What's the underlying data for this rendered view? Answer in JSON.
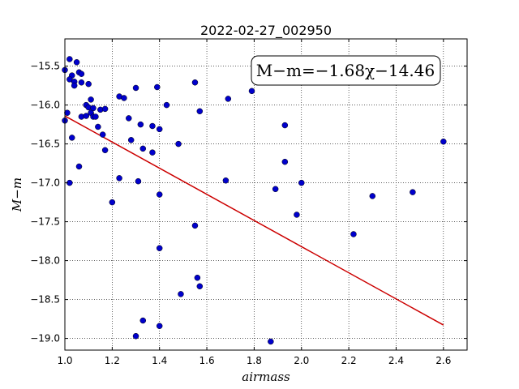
{
  "chart_data": {
    "type": "scatter",
    "title": "2022-02-27_002950",
    "xlabel": "airmass",
    "ylabel": "M−m",
    "xlim": [
      1.0,
      2.7
    ],
    "ylim": [
      -19.15,
      -15.15
    ],
    "xticks": [
      1.0,
      1.2,
      1.4,
      1.6,
      1.8,
      2.0,
      2.2,
      2.4,
      2.6
    ],
    "xtick_labels": [
      "1.0",
      "1.2",
      "1.4",
      "1.6",
      "1.8",
      "2.0",
      "2.2",
      "2.4",
      "2.6"
    ],
    "yticks": [
      -15.5,
      -16.0,
      -16.5,
      -17.0,
      -17.5,
      -18.0,
      -18.5,
      -19.0
    ],
    "ytick_labels": [
      "−15.5",
      "−16.0",
      "−16.5",
      "−17.0",
      "−17.5",
      "−18.0",
      "−18.5",
      "−19.0"
    ],
    "grid": true,
    "annotation": "M−m=−1.68χ−14.46",
    "annotation_position": "top-right",
    "fit": {
      "slope": -1.68,
      "intercept": -14.46,
      "x_range": [
        1.0,
        2.6
      ],
      "color": "#cc0000"
    },
    "point_color": "#0000cc",
    "points": [
      {
        "x": 1.0,
        "y": -15.55
      },
      {
        "x": 1.01,
        "y": -16.1
      },
      {
        "x": 1.0,
        "y": -16.2
      },
      {
        "x": 1.02,
        "y": -15.41
      },
      {
        "x": 1.03,
        "y": -15.62
      },
      {
        "x": 1.02,
        "y": -15.67
      },
      {
        "x": 1.04,
        "y": -15.7
      },
      {
        "x": 1.04,
        "y": -15.75
      },
      {
        "x": 1.05,
        "y": -15.45
      },
      {
        "x": 1.06,
        "y": -15.58
      },
      {
        "x": 1.07,
        "y": -15.6
      },
      {
        "x": 1.07,
        "y": -15.71
      },
      {
        "x": 1.1,
        "y": -15.73
      },
      {
        "x": 1.03,
        "y": -16.42
      },
      {
        "x": 1.02,
        "y": -17.0
      },
      {
        "x": 1.06,
        "y": -16.79
      },
      {
        "x": 1.07,
        "y": -16.15
      },
      {
        "x": 1.09,
        "y": -16.14
      },
      {
        "x": 1.09,
        "y": -16.0
      },
      {
        "x": 1.1,
        "y": -16.03
      },
      {
        "x": 1.11,
        "y": -15.93
      },
      {
        "x": 1.11,
        "y": -16.1
      },
      {
        "x": 1.12,
        "y": -16.04
      },
      {
        "x": 1.12,
        "y": -16.15
      },
      {
        "x": 1.13,
        "y": -16.15
      },
      {
        "x": 1.14,
        "y": -16.28
      },
      {
        "x": 1.15,
        "y": -16.06
      },
      {
        "x": 1.16,
        "y": -16.38
      },
      {
        "x": 1.17,
        "y": -16.05
      },
      {
        "x": 1.17,
        "y": -16.58
      },
      {
        "x": 1.2,
        "y": -17.25
      },
      {
        "x": 1.23,
        "y": -15.89
      },
      {
        "x": 1.25,
        "y": -15.91
      },
      {
        "x": 1.27,
        "y": -16.17
      },
      {
        "x": 1.28,
        "y": -16.45
      },
      {
        "x": 1.23,
        "y": -16.94
      },
      {
        "x": 1.3,
        "y": -15.78
      },
      {
        "x": 1.32,
        "y": -16.25
      },
      {
        "x": 1.33,
        "y": -16.56
      },
      {
        "x": 1.31,
        "y": -16.98
      },
      {
        "x": 1.37,
        "y": -16.27
      },
      {
        "x": 1.37,
        "y": -16.61
      },
      {
        "x": 1.39,
        "y": -15.77
      },
      {
        "x": 1.4,
        "y": -16.31
      },
      {
        "x": 1.43,
        "y": -16.0
      },
      {
        "x": 1.4,
        "y": -17.15
      },
      {
        "x": 1.4,
        "y": -17.84
      },
      {
        "x": 1.48,
        "y": -16.5
      },
      {
        "x": 1.55,
        "y": -15.71
      },
      {
        "x": 1.57,
        "y": -16.08
      },
      {
        "x": 1.55,
        "y": -17.55
      },
      {
        "x": 1.56,
        "y": -18.22
      },
      {
        "x": 1.57,
        "y": -18.33
      },
      {
        "x": 1.49,
        "y": -18.43
      },
      {
        "x": 1.33,
        "y": -18.77
      },
      {
        "x": 1.3,
        "y": -18.97
      },
      {
        "x": 1.4,
        "y": -18.84
      },
      {
        "x": 1.69,
        "y": -15.92
      },
      {
        "x": 1.68,
        "y": -16.97
      },
      {
        "x": 1.79,
        "y": -15.82
      },
      {
        "x": 1.87,
        "y": -19.04
      },
      {
        "x": 1.89,
        "y": -17.08
      },
      {
        "x": 1.93,
        "y": -16.26
      },
      {
        "x": 1.93,
        "y": -16.73
      },
      {
        "x": 1.98,
        "y": -17.41
      },
      {
        "x": 2.0,
        "y": -17.0
      },
      {
        "x": 2.22,
        "y": -17.66
      },
      {
        "x": 2.3,
        "y": -17.17
      },
      {
        "x": 2.47,
        "y": -17.12
      },
      {
        "x": 2.6,
        "y": -16.47
      }
    ]
  }
}
